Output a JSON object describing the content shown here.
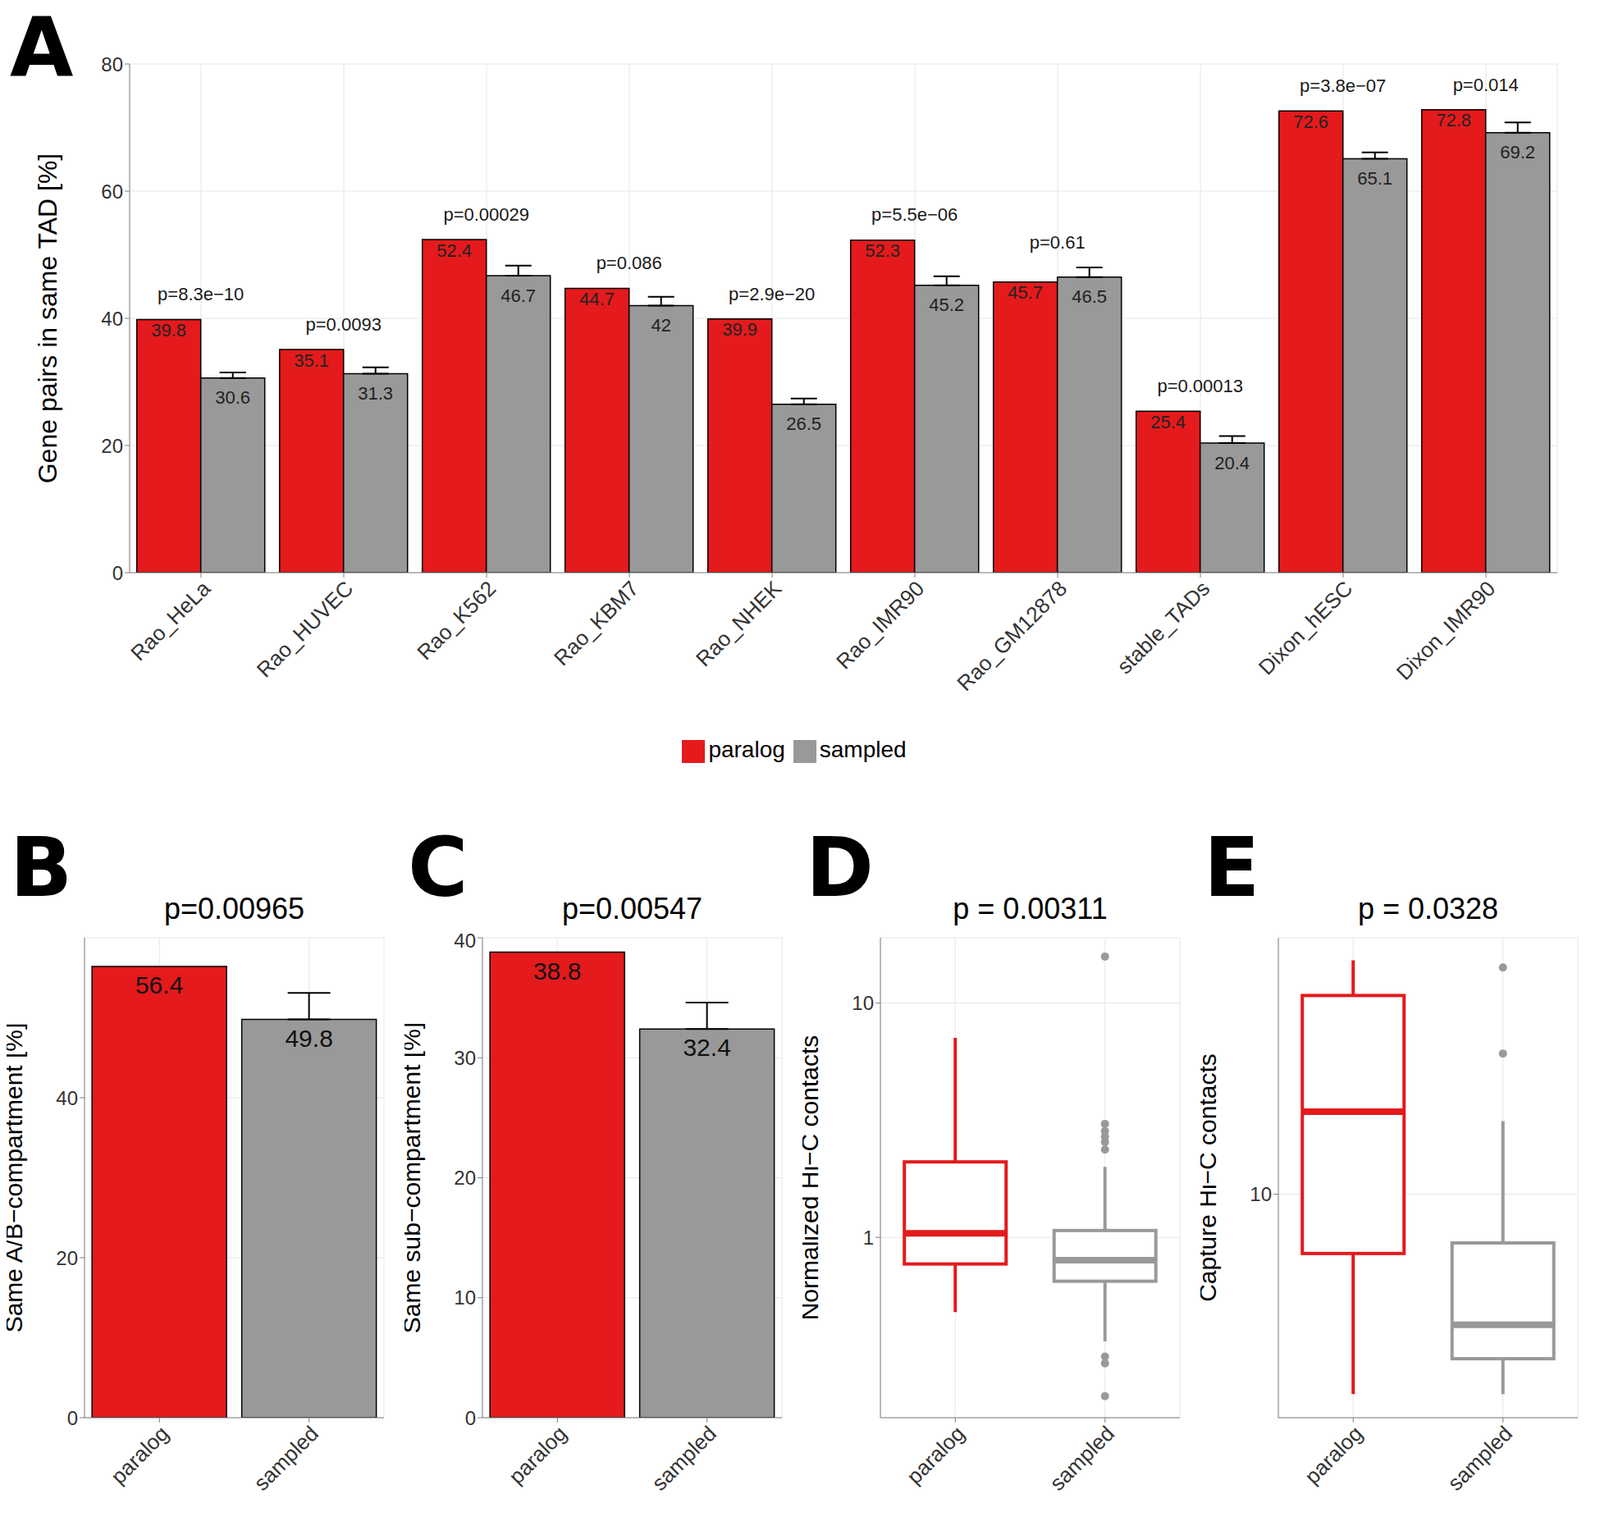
{
  "chart_data": [
    {
      "type": "bar",
      "panel_label": "A",
      "categories": [
        "Rao_HeLa",
        "Rao_HUVEC",
        "Rao_K562",
        "Rao_KBM7",
        "Rao_NHEK",
        "Rao_IMR90",
        "Rao_GM12878",
        "stable_TADs",
        "Dixon_hESC",
        "Dixon_IMR90"
      ],
      "series": [
        {
          "name": "paralog",
          "color": "#e41a1c",
          "values": [
            39.8,
            35.1,
            52.4,
            44.7,
            39.9,
            52.3,
            45.7,
            25.4,
            72.6,
            72.8
          ]
        },
        {
          "name": "sampled",
          "color": "#999999",
          "values": [
            30.6,
            31.3,
            46.7,
            42,
            26.5,
            45.2,
            46.5,
            20.4,
            65.1,
            69.2
          ],
          "errors": [
            0.9,
            1.0,
            1.6,
            1.4,
            0.9,
            1.4,
            1.5,
            1.1,
            1.0,
            1.6
          ]
        }
      ],
      "annotations": [
        "p=8.3e−10",
        "p=0.0093",
        "p=0.00029",
        "p=0.086",
        "p=2.9e−20",
        "p=5.5e−06",
        "p=0.61",
        "p=0.00013",
        "p=3.8e−07",
        "p=0.014"
      ],
      "y_label": "Gene pairs in same TAD [%]",
      "ylim": [
        0,
        80
      ],
      "yticks": [
        0,
        20,
        40,
        60,
        80
      ],
      "grid": true,
      "legend": "bottom",
      "data_labels": true
    },
    {
      "type": "bar",
      "panel_label": "B",
      "title": "p=0.00965",
      "y_label": "Same A/B−compartment [%]",
      "categories": [
        "paralog",
        "sampled"
      ],
      "values": [
        56.4,
        49.8
      ],
      "colors": [
        "#e41a1c",
        "#999999"
      ],
      "errors": [
        null,
        3.3
      ],
      "ylim": [
        0,
        60
      ],
      "yticks": [
        0,
        20,
        40
      ],
      "grid": true,
      "data_labels": true
    },
    {
      "type": "bar",
      "panel_label": "C",
      "title": "p=0.00547",
      "y_label": "Same sub−compartment [%]",
      "categories": [
        "paralog",
        "sampled"
      ],
      "values": [
        38.8,
        32.4
      ],
      "colors": [
        "#e41a1c",
        "#999999"
      ],
      "errors": [
        null,
        2.2
      ],
      "ylim": [
        0,
        40
      ],
      "yticks": [
        0,
        10,
        20,
        30,
        40
      ],
      "grid": true,
      "data_labels": true
    },
    {
      "type": "box",
      "panel_label": "D",
      "title": "p = 0.00311",
      "y_label": "Normalized Hi−C contacts",
      "categories": [
        "paralog",
        "sampled"
      ],
      "colors": [
        "#e41a1c",
        "#999999"
      ],
      "whisker_low": [
        0.48,
        0.36
      ],
      "q1": [
        0.77,
        0.65
      ],
      "median": [
        1.04,
        0.8
      ],
      "q3": [
        2.1,
        1.07
      ],
      "whisker_high": [
        7.1,
        2.0
      ],
      "outliers": [
        [],
        [
          15.8,
          3.05,
          2.84,
          2.69,
          2.55,
          2.37,
          0.31,
          0.29,
          0.21
        ]
      ],
      "log": "y",
      "ylim": [
        0.17,
        19
      ],
      "yticks": [
        1,
        10
      ],
      "grid": true
    },
    {
      "type": "box",
      "panel_label": "E",
      "title": "p = 0.0328",
      "y_label": "Capture Hi−C contacts",
      "categories": [
        "paralog",
        "sampled"
      ],
      "colors": [
        "#e41a1c",
        "#999999"
      ],
      "whisker_low": [
        1.5,
        1.5
      ],
      "q1": [
        5.7,
        2.1
      ],
      "median": [
        21.9,
        2.9
      ],
      "q3": [
        65.9,
        6.3
      ],
      "whisker_high": [
        92,
        20
      ],
      "outliers": [
        [],
        [
          38,
          86
        ]
      ],
      "log": "y",
      "ylim": [
        1.2,
        114
      ],
      "yticks": [
        10
      ],
      "grid": true
    }
  ]
}
